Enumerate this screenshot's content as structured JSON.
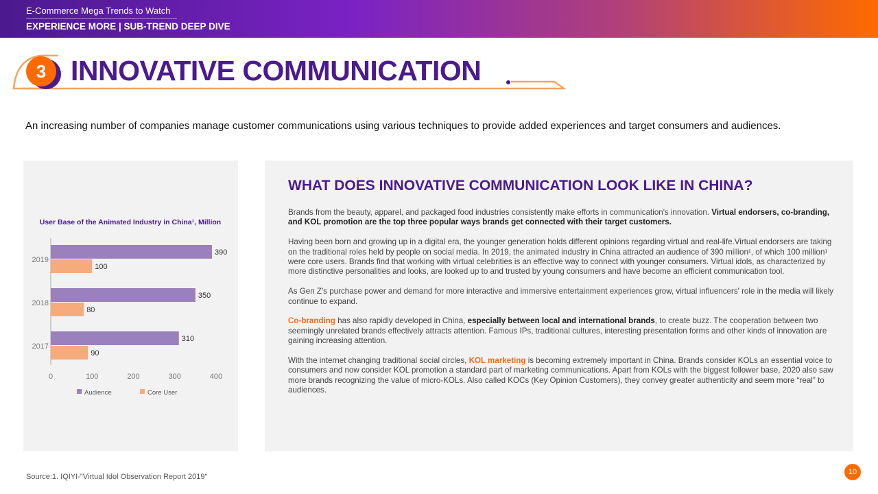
{
  "header": {
    "subtitle": "E-Commerce Mega Trends to Watch",
    "section": "EXPERIENCE MORE | SUB-TREND DEEP DIVE"
  },
  "title": {
    "number": "3",
    "text": "INNOVATIVE COMMUNICATION"
  },
  "intro": "An increasing number of companies manage customer communications using various techniques to provide added experiences and target consumers and audiences.",
  "colors": {
    "purple": "#4b1a8e",
    "orange": "#ff6a00",
    "audience": "#9b80be",
    "core_user": "#f5ab7c"
  },
  "chart_data": {
    "type": "bar",
    "orientation": "horizontal",
    "title": "User Base of the Animated Industry in China¹, Million",
    "categories": [
      "2019",
      "2018",
      "2017"
    ],
    "series": [
      {
        "name": "Audience",
        "values": [
          390,
          350,
          310
        ]
      },
      {
        "name": "Core User",
        "values": [
          100,
          80,
          90
        ]
      }
    ],
    "xlim": [
      0,
      400
    ],
    "xticks": [
      "0",
      "100",
      "200",
      "300",
      "400"
    ],
    "grid": false,
    "legend": "bottom"
  },
  "panel": {
    "title": "WHAT DOES INNOVATIVE COMMUNICATION LOOK LIKE IN CHINA?",
    "p1a": "Brands from the beauty, apparel, and packaged food industries consistently make efforts in communication's innovation. ",
    "p1b": "Virtual endorsers, co-branding, and KOL promotion are the top three popular ways brands get connected with their target customers.",
    "p2": "Having been born and growing up in a digital era, the younger generation holds different opinions regarding virtual and real-life.Virtual endorsers are taking on the traditional roles held by people on social media. In 2019, the animated industry in China attracted an audience of 390 million¹, of which 100 million¹ were core users.  Brands find that working with virtual celebrities is an effective way to connect with younger consumers. Virtual idols, as characterized by more distinctive personalities and looks, are looked up to and trusted by young consumers and have become an efficient communication tool.",
    "p3": "As Gen Z's purchase power and demand for more interactive and immersive entertainment experiences grow, virtual influencers' role in the media will likely continue to expand.",
    "p4a": "Co-branding",
    "p4b": " has also rapidly developed in China, ",
    "p4c": "especially between local and international brands",
    "p4d": ", to create buzz. The cooperation between two seemingly unrelated brands effectively attracts attention. Famous IPs, traditional cultures, interesting presentation forms and other kinds of innovation are gaining increasing attention.",
    "p5a": "With the internet changing traditional social circles, ",
    "p5b": "KOL marketing",
    "p5c": " is becoming extremely important in China. Brands consider KOLs an essential voice to consumers and now consider KOL promotion a standard part of marketing communications. Apart from KOLs with the biggest follower base, 2020 also saw more brands recognizing the value of micro-KOLs.  Also called KOCs (Key Opinion Customers), they convey greater authenticity and seem more “real” to audiences."
  },
  "source": "Source:1. IQIYI-\"Virtual Idol Observation Report 2019\"",
  "page_number": "10"
}
